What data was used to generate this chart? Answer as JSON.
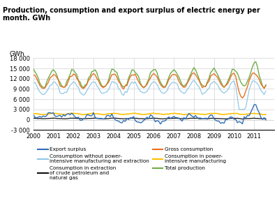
{
  "title": "Production, consumption and export surplus of electric energy per\nmonth. GWh",
  "ylabel": "GWh",
  "xmin": 2000.0,
  "xmax": 2012.0,
  "ymin": -3000,
  "ymax": 18000,
  "yticks": [
    -3000,
    0,
    3000,
    6000,
    9000,
    12000,
    15000,
    18000
  ],
  "ytick_labels": [
    "-3 000",
    "0",
    "3 000",
    "6 000",
    "9 000",
    "12 000",
    "15 000",
    "18 000"
  ],
  "xticks": [
    2000,
    2001,
    2002,
    2003,
    2004,
    2005,
    2006,
    2007,
    2008,
    2009,
    2010,
    2011
  ],
  "colors": {
    "export_surplus": "#3070B8",
    "extraction": "#111111",
    "power_intensive": "#FFC000",
    "consumption_without": "#90C8E8",
    "gross_consumption": "#E87020",
    "total_production": "#70AD47"
  }
}
